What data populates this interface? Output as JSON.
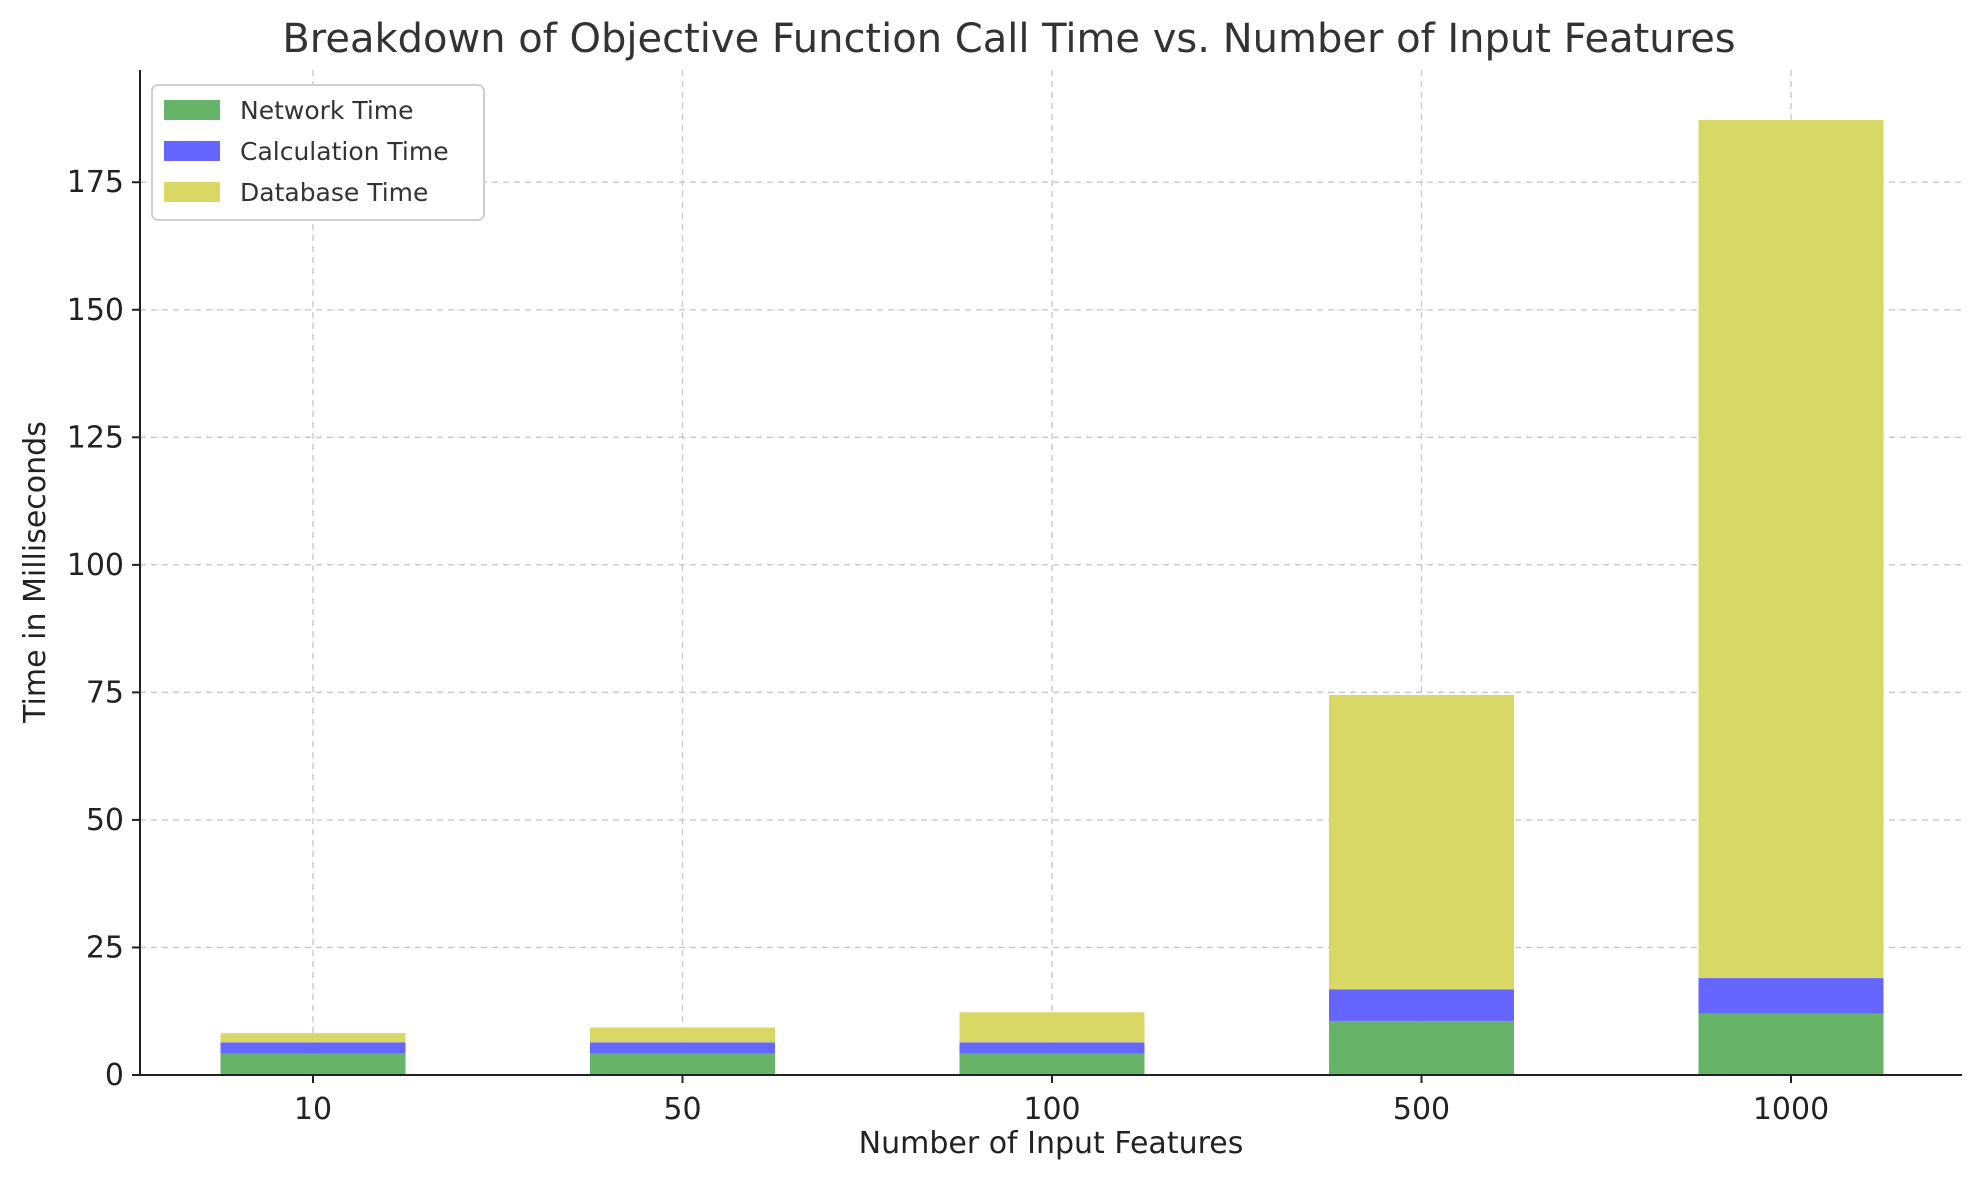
{
  "chart_data": {
    "type": "bar",
    "stacked": true,
    "title": "Breakdown of Objective Function Call Time vs. Number of Input Features",
    "xlabel": "Number of Input Features",
    "ylabel": "Time in Milliseconds",
    "categories": [
      "10",
      "50",
      "100",
      "500",
      "1000"
    ],
    "ylim": [
      0,
      197
    ],
    "yticks": [
      0,
      25,
      50,
      75,
      100,
      125,
      150,
      175
    ],
    "grid": true,
    "legend_position": "top-left",
    "series": [
      {
        "name": "Network Time",
        "color": "#67b367",
        "values": [
          4.2,
          4.2,
          4.2,
          10.6,
          12
        ]
      },
      {
        "name": "Calculation Time",
        "color": "#6666ff",
        "values": [
          2.2,
          2.2,
          2.2,
          6.2,
          7
        ]
      },
      {
        "name": "Database Time",
        "color": "#d8d867",
        "values": [
          1.8,
          2.9,
          5.9,
          57.7,
          168.2
        ]
      }
    ]
  }
}
